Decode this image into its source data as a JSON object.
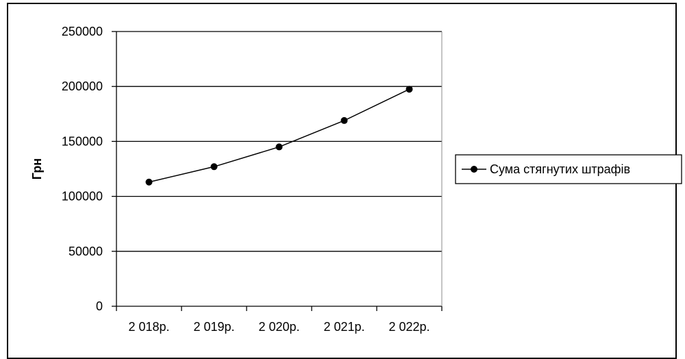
{
  "chart_data": {
    "type": "line",
    "categories": [
      "2 018р.",
      "2 019р.",
      "2 020р.",
      "2 021р.",
      "2 022р."
    ],
    "series": [
      {
        "name": "Сума стягнутих штрафів",
        "values": [
          113000,
          127000,
          145000,
          169000,
          197500
        ]
      }
    ],
    "title": "",
    "xlabel": "",
    "ylabel": "Грн",
    "ylim": [
      0,
      250000
    ],
    "yticks": [
      "0",
      "50000",
      "100000",
      "150000",
      "200000",
      "250000"
    ],
    "grid": true,
    "legend_position": "right",
    "colors": {
      "line": "#000000",
      "grid": "#000000",
      "background": "#ffffff"
    }
  }
}
